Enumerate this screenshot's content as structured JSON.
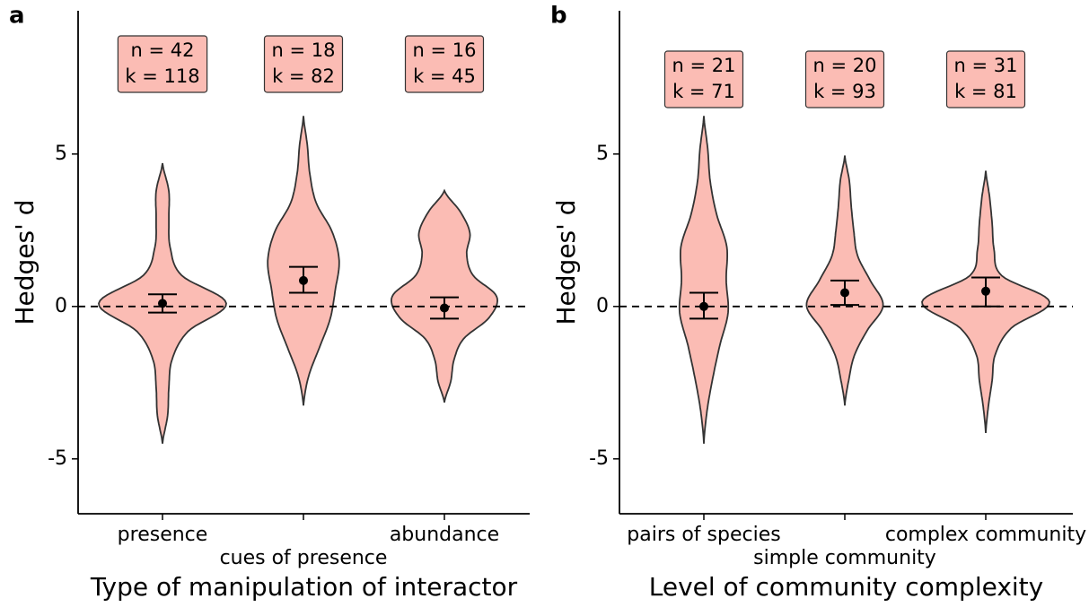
{
  "chart_data": [
    {
      "type": "violin",
      "panel_label": "a",
      "xlabel": "Type of manipulation of interactor",
      "ylabel": "Hedges' d",
      "categories": [
        "presence",
        "cues of presence",
        "abundance"
      ],
      "ylim": [
        -6.8,
        9.7
      ],
      "yticks": [
        -5,
        0,
        5
      ],
      "hline": 0,
      "color": "#fbbcb4",
      "violins": [
        {
          "min": -4.5,
          "max": 4.7,
          "profile": [
            0,
            0.08,
            0.1,
            0.15,
            0.4,
            1.0,
            0.3,
            0.12,
            0.1,
            0.1,
            0
          ],
          "mean": 0.1,
          "ci": [
            -0.2,
            0.4
          ],
          "n_label": "n = 42",
          "k_label": "k = 118"
        },
        {
          "min": -3.25,
          "max": 6.25,
          "profile": [
            0,
            0.08,
            0.25,
            0.42,
            0.5,
            0.56,
            0.45,
            0.2,
            0.1,
            0.06,
            0
          ],
          "mean": 0.85,
          "ci": [
            0.45,
            1.3
          ],
          "n_label": "n = 18",
          "k_label": "k = 82"
        },
        {
          "min": -3.15,
          "max": 3.8,
          "profile": [
            0,
            0.1,
            0.15,
            0.3,
            0.7,
            0.82,
            0.45,
            0.35,
            0.4,
            0.25,
            0
          ],
          "mean": -0.05,
          "ci": [
            -0.4,
            0.3
          ],
          "n_label": "n = 16",
          "k_label": "k = 45"
        }
      ]
    },
    {
      "type": "violin",
      "panel_label": "b",
      "xlabel": "Level of community complexity",
      "ylabel": "Hedges' d",
      "categories": [
        "pairs of species",
        "simple community",
        "complex community"
      ],
      "ylim": [
        -6.8,
        9.7
      ],
      "yticks": [
        -5,
        0,
        5
      ],
      "hline": 0,
      "color": "#fbbcb4",
      "violins": [
        {
          "min": -4.5,
          "max": 6.25,
          "profile": [
            0,
            0.05,
            0.14,
            0.25,
            0.38,
            0.35,
            0.36,
            0.2,
            0.1,
            0.06,
            0
          ],
          "mean": 0.0,
          "ci": [
            -0.4,
            0.45
          ],
          "n_label": "n = 21",
          "k_label": "k = 71"
        },
        {
          "min": -3.25,
          "max": 4.95,
          "profile": [
            0,
            0.06,
            0.15,
            0.35,
            0.6,
            0.4,
            0.2,
            0.14,
            0.1,
            0.07,
            0
          ],
          "mean": 0.45,
          "ci": [
            0.05,
            0.85
          ],
          "n_label": "n = 20",
          "k_label": "k = 93"
        },
        {
          "min": -4.15,
          "max": 4.45,
          "profile": [
            0,
            0.04,
            0.1,
            0.15,
            0.4,
            1.0,
            0.25,
            0.13,
            0.1,
            0.06,
            0
          ],
          "mean": 0.5,
          "ci": [
            0.0,
            0.95
          ],
          "n_label": "n = 31",
          "k_label": "k = 81"
        }
      ]
    }
  ]
}
